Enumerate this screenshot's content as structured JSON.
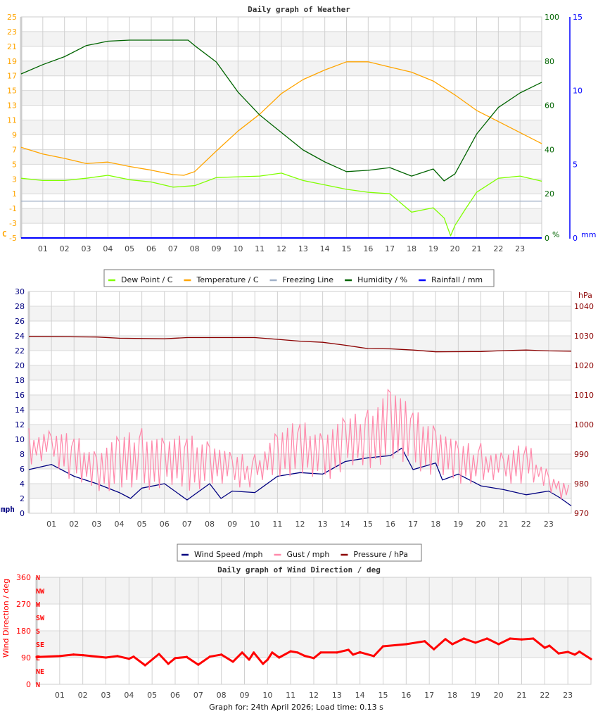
{
  "footer": "Graph for: 24th April 2026; Load time: 0.13 s",
  "chart_data": [
    {
      "type": "line",
      "title": "Daily graph of Weather",
      "x_range": [
        0,
        24
      ],
      "x_ticks": [
        "01",
        "02",
        "03",
        "04",
        "05",
        "06",
        "07",
        "08",
        "09",
        "10",
        "11",
        "12",
        "13",
        "14",
        "15",
        "16",
        "17",
        "18",
        "19",
        "20",
        "21",
        "22",
        "23"
      ],
      "grid": true,
      "legend_placement": "bottom",
      "axes": {
        "temperature": {
          "unit": "C",
          "range": [
            -5,
            25
          ],
          "ticks": [
            25,
            23,
            21,
            19,
            17,
            15,
            13,
            11,
            9,
            7,
            5,
            3,
            1,
            -1,
            -3,
            -5
          ],
          "color": "#ffa500",
          "side": "left"
        },
        "humidity": {
          "unit": "%",
          "range": [
            0,
            100
          ],
          "ticks": [
            100,
            80,
            60,
            40,
            20,
            0
          ],
          "color": "#006400",
          "side": "right"
        },
        "rainfall": {
          "unit": "mm",
          "range": [
            0,
            15
          ],
          "ticks": [
            15,
            10,
            5,
            0
          ],
          "color": "#0000ff",
          "side": "right"
        }
      },
      "series": [
        {
          "name": "Dew Point / C",
          "color": "#80ff00",
          "axis": "temperature",
          "x": [
            0,
            1,
            2,
            3,
            4,
            5,
            6,
            7,
            8,
            9,
            10,
            11,
            12,
            13,
            14,
            15,
            16,
            17,
            18,
            19,
            19.5,
            19.8,
            20,
            20.5,
            21,
            22,
            23,
            24
          ],
          "y": [
            3.1,
            2.8,
            2.8,
            3.1,
            3.5,
            2.9,
            2.6,
            1.9,
            2.1,
            3.2,
            3.3,
            3.4,
            3.8,
            2.8,
            2.2,
            1.6,
            1.2,
            1.0,
            -1.5,
            -0.9,
            -2.3,
            -4.7,
            -3.3,
            -1.0,
            1.2,
            3.1,
            3.4,
            2.7
          ]
        },
        {
          "name": "Temperature / C",
          "color": "#ffa500",
          "axis": "temperature",
          "x": [
            0,
            1,
            2,
            3,
            4,
            5,
            6,
            7,
            7.5,
            8,
            9,
            10,
            11,
            12,
            13,
            14,
            15,
            16,
            17,
            18,
            19,
            20,
            21,
            22,
            23,
            24
          ],
          "y": [
            7.3,
            6.4,
            5.8,
            5.1,
            5.3,
            4.7,
            4.2,
            3.6,
            3.5,
            4.0,
            6.8,
            9.5,
            11.8,
            14.6,
            16.5,
            17.8,
            18.9,
            18.9,
            18.2,
            17.5,
            16.3,
            14.4,
            12.3,
            10.8,
            9.3,
            7.8
          ]
        },
        {
          "name": "Freezing Line",
          "color": "#a0b0c8",
          "axis": "temperature",
          "x": [
            0,
            24
          ],
          "y": [
            0,
            0
          ]
        },
        {
          "name": "Humidity / %",
          "color": "#006400",
          "axis": "humidity",
          "x": [
            0,
            1,
            2,
            3,
            3.5,
            4,
            5,
            6,
            7,
            7.7,
            8,
            9,
            10,
            11,
            12,
            13,
            14,
            15,
            16,
            17,
            18,
            19,
            19.5,
            20,
            21,
            22,
            23,
            24
          ],
          "y": [
            74.2,
            78.4,
            82,
            87,
            88,
            89,
            89.5,
            89.5,
            89.5,
            89.5,
            87,
            79.6,
            66,
            55.6,
            47.7,
            39.8,
            34.4,
            30,
            30.6,
            31.8,
            28,
            31.2,
            25.8,
            29,
            47,
            59,
            65.6,
            70.4
          ]
        },
        {
          "name": "Rainfall / mm",
          "color": "#0000ff",
          "axis": "rainfall",
          "x": [
            0,
            24
          ],
          "y": [
            0,
            0
          ]
        }
      ]
    },
    {
      "type": "line",
      "title": "",
      "x_range": [
        0,
        24
      ],
      "x_ticks": [
        "01",
        "02",
        "03",
        "04",
        "05",
        "06",
        "07",
        "08",
        "09",
        "10",
        "11",
        "12",
        "13",
        "14",
        "15",
        "16",
        "17",
        "18",
        "19",
        "20",
        "21",
        "22",
        "23"
      ],
      "grid": true,
      "legend_placement": "bottom",
      "axes": {
        "speed": {
          "unit": "mph",
          "range": [
            0,
            30
          ],
          "ticks": [
            30,
            28,
            26,
            24,
            22,
            20,
            18,
            16,
            14,
            12,
            10,
            8,
            6,
            4,
            2,
            0
          ],
          "color": "#000080",
          "side": "left"
        },
        "pressure": {
          "unit": "hPa",
          "range": [
            970,
            1045
          ],
          "ticks": [
            1040,
            1030,
            1020,
            1010,
            1000,
            990,
            980,
            970
          ],
          "color": "#8b0000",
          "side": "right"
        }
      },
      "series": [
        {
          "name": "Wind Speed /mph",
          "color": "#000080",
          "axis": "speed",
          "x": [
            0,
            1,
            2,
            3,
            4,
            4.5,
            5,
            6,
            7,
            8,
            8.5,
            9,
            10,
            11,
            12,
            13,
            14,
            15,
            16,
            16.5,
            17,
            18,
            18.3,
            19,
            20,
            21,
            22,
            23,
            23.5,
            24
          ],
          "y": [
            5.9,
            6.6,
            5.0,
            4.0,
            2.8,
            2.0,
            3.4,
            4.0,
            1.8,
            4.0,
            2.0,
            3.0,
            2.8,
            5.0,
            5.5,
            5.3,
            7.0,
            7.5,
            7.8,
            8.8,
            5.9,
            6.8,
            4.5,
            5.3,
            3.7,
            3.2,
            2.5,
            3.0,
            2.1,
            1.0
          ]
        },
        {
          "name": "Gust / mph",
          "color": "#ff88aa",
          "axis": "speed",
          "style": "range",
          "x": [
            0,
            1,
            2,
            3,
            4,
            5,
            6,
            7,
            8,
            9,
            10,
            11,
            12,
            13,
            14,
            15,
            16,
            17,
            18,
            19,
            20,
            21,
            22,
            23,
            24
          ],
          "high": [
            11.5,
            11.5,
            10.5,
            9,
            10.5,
            11.5,
            10.5,
            10.5,
            10.5,
            8,
            8,
            11.5,
            12.5,
            11.5,
            13,
            14,
            17.5,
            14,
            12.5,
            9.5,
            9.5,
            8.5,
            9.5,
            6.5,
            3.5
          ],
          "low": [
            6,
            7,
            4,
            3,
            3,
            3,
            3.5,
            3,
            3.5,
            3.5,
            3.5,
            5,
            5,
            4,
            6,
            6,
            7,
            6,
            5,
            4,
            4,
            4,
            4,
            3,
            1
          ]
        },
        {
          "name": "Pressure / hPa",
          "color": "#8b0000",
          "axis": "pressure",
          "x": [
            0,
            3,
            4,
            6,
            7,
            10,
            11,
            12,
            13,
            14,
            15,
            16,
            17,
            18,
            20,
            21,
            22,
            23,
            24
          ],
          "y": [
            1029.8,
            1029.6,
            1029.2,
            1029.0,
            1029.4,
            1029.4,
            1028.8,
            1028.2,
            1027.8,
            1026.8,
            1025.7,
            1025.6,
            1025.2,
            1024.6,
            1024.7,
            1025.0,
            1025.2,
            1024.9,
            1024.8
          ]
        }
      ]
    },
    {
      "type": "scatter",
      "title": "Daily graph of Wind Direction / deg",
      "ylabel": "Wind Direction / deg",
      "x_range": [
        0,
        24
      ],
      "x_ticks": [
        "01",
        "02",
        "03",
        "04",
        "05",
        "06",
        "07",
        "08",
        "09",
        "10",
        "11",
        "12",
        "13",
        "14",
        "15",
        "16",
        "17",
        "18",
        "19",
        "20",
        "21",
        "22",
        "23"
      ],
      "grid": true,
      "axes": {
        "direction": {
          "unit": "deg",
          "range": [
            0,
            360
          ],
          "ticks": [
            360,
            270,
            180,
            90,
            0
          ],
          "color": "#ff0000",
          "side": "left"
        }
      },
      "compass_labels": [
        {
          "label": "N",
          "deg": 360
        },
        {
          "label": "NW",
          "deg": 315
        },
        {
          "label": "W",
          "deg": 270
        },
        {
          "label": "SW",
          "deg": 225
        },
        {
          "label": "S",
          "deg": 180
        },
        {
          "label": "SE",
          "deg": 135
        },
        {
          "label": "E",
          "deg": 90
        },
        {
          "label": "NE",
          "deg": 45
        },
        {
          "label": "N",
          "deg": 0
        }
      ],
      "series": [
        {
          "color": "#ff0000",
          "axis": "direction",
          "x": [
            0,
            1,
            1.6,
            2,
            3,
            3.5,
            4,
            4.2,
            4.7,
            5.3,
            5.7,
            6,
            6.5,
            7,
            7.5,
            8,
            8.5,
            8.9,
            9.2,
            9.4,
            9.8,
            10,
            10.2,
            10.5,
            11,
            11.3,
            11.6,
            12,
            12.3,
            13,
            13.5,
            13.7,
            14,
            14.6,
            15,
            16,
            16.8,
            17.2,
            17.7,
            18,
            18.5,
            19,
            19.5,
            20,
            20.5,
            21,
            21.5,
            22,
            22.2,
            22.6,
            23,
            23.3,
            23.5,
            24
          ],
          "y": [
            92,
            95,
            100,
            98,
            90,
            95,
            86,
            93,
            64,
            102,
            69,
            88,
            92,
            66,
            93,
            100,
            76,
            107,
            83,
            107,
            69,
            83,
            107,
            90,
            111,
            107,
            96,
            88,
            107,
            107,
            116,
            100,
            108,
            95,
            128,
            135,
            145,
            118,
            152,
            135,
            154,
            140,
            154,
            135,
            154,
            151,
            154,
            123,
            130,
            104,
            109,
            100,
            110,
            85
          ]
        }
      ]
    }
  ]
}
